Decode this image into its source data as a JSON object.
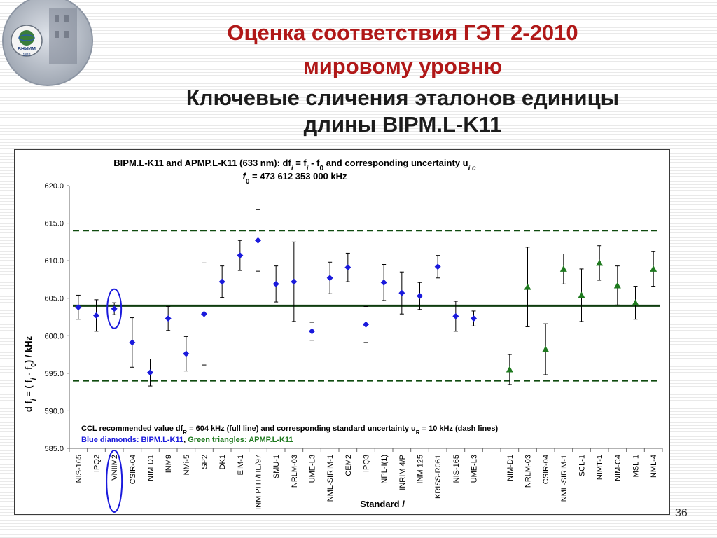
{
  "slide": {
    "title_line1": "Оценка соответствия ГЭТ 2-2010",
    "title_line2": "мировому уровню",
    "subtitle_line1": "Ключевые сличения эталонов единицы",
    "subtitle_line2": "длины BIPM.L-K11",
    "page_number": "36",
    "logo_text": "ВНИИМ",
    "logo_year": "1842"
  },
  "chart_data": {
    "type": "scatter",
    "title_line1": {
      "pre": "BIPM.L-K11 and APMP.L-K11 (633 nm): df",
      "sub1": "i",
      "mid1": " = f",
      "sub2": "i",
      "mid2": " - f",
      "sub3": "0",
      "mid3": " and corresponding uncertainty u",
      "sub4": "i c"
    },
    "title_line2": {
      "pre": "f",
      "sub": "0",
      "post": " = 473 612 353 000 kHz"
    },
    "ylabel": {
      "p1": "d f",
      "s1": "i",
      "p2": " = ( f",
      "s2": "i",
      "p3": " - f",
      "s3": "0",
      "p4": ") / kHz"
    },
    "xlabel": {
      "pre": "Standard ",
      "ital": "i"
    },
    "ylim": [
      585,
      620
    ],
    "yticks": [
      "585.0",
      "590.0",
      "595.0",
      "600.0",
      "605.0",
      "610.0",
      "615.0",
      "620.0"
    ],
    "reference": {
      "value": 604,
      "upper": 614,
      "lower": 594
    },
    "note_line1": {
      "pre": "CCL recommended value df",
      "sub1": "R",
      "mid": " = 604 kHz (full line) and corresponding standard uncertainty u",
      "sub2": "R",
      "post": " = 10 kHz (dash lines)"
    },
    "note_line2": {
      "blue": "Blue diamonds: BIPM.L-K11",
      "sep": ", ",
      "green": "Green triangles: APMP.L-K11"
    },
    "series": [
      {
        "name": "BIPM.L-K11",
        "marker": "diamond",
        "color": "#1a1adc",
        "points": [
          {
            "label": "NIS-165",
            "y": 603.8,
            "yerr": 1.6
          },
          {
            "label": "IPQ2",
            "y": 602.7,
            "yerr": 2.1
          },
          {
            "label": "VNIIM2",
            "y": 603.6,
            "yerr": 0.8,
            "highlight": true
          },
          {
            "label": "CSIR-04",
            "y": 599.1,
            "yerr": 3.3
          },
          {
            "label": "NIM-D1",
            "y": 595.1,
            "yerr": 1.8
          },
          {
            "label": "INM9",
            "y": 602.3,
            "yerr": 1.6
          },
          {
            "label": "NMi-5",
            "y": 597.6,
            "yerr": 2.3
          },
          {
            "label": "SP2",
            "y": 602.9,
            "yerr": 6.8
          },
          {
            "label": "DK1",
            "y": 607.2,
            "yerr": 2.1
          },
          {
            "label": "EIM-1",
            "y": 610.7,
            "yerr": 2.0
          },
          {
            "label": "INM PHT/HE/97",
            "y": 612.7,
            "yerr": 4.1
          },
          {
            "label": "SMU-1",
            "y": 606.9,
            "yerr": 2.4
          },
          {
            "label": "NRLM-03",
            "y": 607.2,
            "yerr": 5.3
          },
          {
            "label": "UME-L3",
            "y": 600.6,
            "yerr": 1.2
          },
          {
            "label": "NML-SIRIM-1",
            "y": 607.7,
            "yerr": 2.1
          },
          {
            "label": "CEM2",
            "y": 609.1,
            "yerr": 1.9
          },
          {
            "label": "IPQ3",
            "y": 601.5,
            "yerr": 2.4
          },
          {
            "label": "NPL-I(1)",
            "y": 607.1,
            "yerr": 2.4
          },
          {
            "label": "INRIM 4/P",
            "y": 605.7,
            "yerr": 2.8
          },
          {
            "label": "INM 125",
            "y": 605.3,
            "yerr": 1.8
          },
          {
            "label": "KRISS-R061",
            "y": 609.2,
            "yerr": 1.5
          },
          {
            "label": "NIS-165",
            "y": 602.6,
            "yerr": 2.0
          },
          {
            "label": "UME-L3",
            "y": 602.3,
            "yerr": 1.0
          }
        ]
      },
      {
        "name": "APMP.L-K11",
        "marker": "triangle",
        "color": "#1f7a1f",
        "points": [
          {
            "label": "NIM-D1",
            "y": 595.5,
            "yerr": 2.0
          },
          {
            "label": "NRLM-03",
            "y": 606.5,
            "yerr": 5.3
          },
          {
            "label": "CSIR-04",
            "y": 598.2,
            "yerr": 3.4
          },
          {
            "label": "NML-SIRIM-1",
            "y": 608.9,
            "yerr": 2.0
          },
          {
            "label": "SCL-1",
            "y": 605.4,
            "yerr": 3.5
          },
          {
            "label": "NIMT-1",
            "y": 609.7,
            "yerr": 2.3
          },
          {
            "label": "NIM-C4",
            "y": 606.7,
            "yerr": 2.6
          },
          {
            "label": "MSL-1",
            "y": 604.4,
            "yerr": 2.2
          },
          {
            "label": "NML-4",
            "y": 608.9,
            "yerr": 2.3
          }
        ]
      }
    ],
    "grid": false,
    "legend": "bottom-left"
  }
}
